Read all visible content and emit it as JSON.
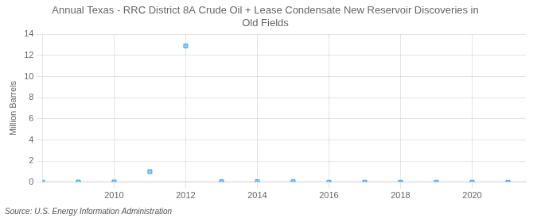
{
  "chart_data": {
    "type": "scatter",
    "title": "Annual Texas - RRC District 8A Crude Oil + Lease Condensate New Reservoir Discoveries in\nOld Fields",
    "ylabel": "Million Barrels",
    "annotations": [
      "Source: U.S. Energy Information Administration"
    ],
    "x": [
      2008,
      2009,
      2010,
      2011,
      2012,
      2013,
      2014,
      2015,
      2016,
      2017,
      2018,
      2019,
      2020,
      2021
    ],
    "values": [
      0.0,
      0.02,
      0.02,
      1.0,
      12.9,
      0.04,
      0.04,
      0.04,
      0.0,
      0.0,
      0.0,
      0.0,
      0.0,
      0.0
    ],
    "xlim": [
      2008.0,
      2021.5
    ],
    "ylim": [
      0,
      14
    ],
    "xticks": [
      2010,
      2012,
      2014,
      2016,
      2018,
      2020
    ],
    "yticks": [
      0,
      2,
      4,
      6,
      8,
      10,
      12,
      14
    ],
    "grid": true,
    "marker": "square"
  }
}
